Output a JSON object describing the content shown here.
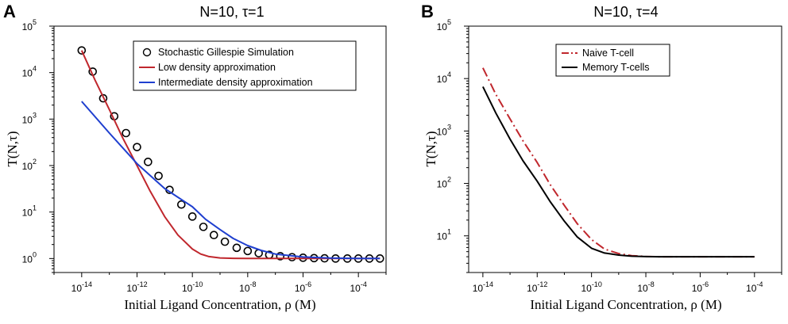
{
  "chart_data": [
    {
      "panel": "A",
      "type": "line",
      "title": "N=10, τ=1",
      "xlabel": "Initial Ligand Concentration, ρ (M)",
      "ylabel": "T(N,τ)",
      "xscale": "log",
      "yscale": "log",
      "xlim": [
        1e-15,
        0.001
      ],
      "ylim": [
        0.5,
        100000
      ],
      "xticks": [
        {
          "value": 1e-14,
          "base": "10",
          "exp": "-14"
        },
        {
          "value": 1e-12,
          "base": "10",
          "exp": "-12"
        },
        {
          "value": 1e-10,
          "base": "10",
          "exp": "-10"
        },
        {
          "value": 1e-08,
          "base": "10",
          "exp": "-8"
        },
        {
          "value": 1e-06,
          "base": "10",
          "exp": "-6"
        },
        {
          "value": 0.0001,
          "base": "10",
          "exp": "-4"
        }
      ],
      "yticks": [
        {
          "value": 1,
          "base": "10",
          "exp": "0"
        },
        {
          "value": 10,
          "base": "10",
          "exp": "1"
        },
        {
          "value": 100,
          "base": "10",
          "exp": "2"
        },
        {
          "value": 1000,
          "base": "10",
          "exp": "3"
        },
        {
          "value": 10000,
          "base": "10",
          "exp": "4"
        },
        {
          "value": 100000,
          "base": "10",
          "exp": "5"
        }
      ],
      "legend_position": "top-right",
      "series": [
        {
          "name": "Stochastic Gillespie Simulation",
          "style": "markers",
          "color": "#000000",
          "x": [
            1e-14,
            2.5e-14,
            6e-14,
            1.5e-13,
            4e-13,
            1e-12,
            2.5e-12,
            6e-12,
            1.5e-11,
            4e-11,
            1e-10,
            2.5e-10,
            6e-10,
            1.5e-09,
            4e-09,
            1e-08,
            2.5e-08,
            6e-08,
            1.5e-07,
            4e-07,
            1e-06,
            2.5e-06,
            6e-06,
            1.5e-05,
            4e-05,
            0.0001,
            0.00025,
            0.0006
          ],
          "y": [
            30000,
            10500,
            2800,
            1150,
            500,
            250,
            120,
            60,
            30,
            14.5,
            8,
            4.8,
            3.2,
            2.3,
            1.7,
            1.45,
            1.3,
            1.2,
            1.12,
            1.07,
            1.04,
            1.02,
            1.01,
            1.0,
            1.0,
            1.0,
            1.0,
            1.0
          ]
        },
        {
          "name": "Low density approximation",
          "style": "line",
          "color": "#c0272d",
          "x": [
            1e-14,
            3e-14,
            1e-13,
            3e-13,
            1e-12,
            3e-12,
            1e-11,
            3e-11,
            1e-10,
            2e-10,
            4e-10,
            1e-09,
            3e-09,
            1e-08,
            1e-07,
            1e-06,
            1e-05,
            0.0001,
            0.0006
          ],
          "y": [
            30000,
            7000,
            1600,
            400,
            100,
            28,
            8,
            3.2,
            1.6,
            1.25,
            1.1,
            1.03,
            1.01,
            1.0,
            1.0,
            1.0,
            1.0,
            1.0,
            1.0
          ]
        },
        {
          "name": "Intermediate density approximation",
          "style": "line",
          "color": "#1f3fcf",
          "x": [
            1e-14,
            1e-13,
            1e-12,
            1e-11,
            1e-10,
            3e-10,
            1e-09,
            3e-09,
            1e-08,
            3e-08,
            1e-07,
            1e-06,
            1e-05,
            0.0001,
            0.0006
          ],
          "y": [
            2400,
            500,
            110,
            32,
            13,
            7,
            4.2,
            2.7,
            1.9,
            1.5,
            1.25,
            1.08,
            1.02,
            1.0,
            1.0
          ]
        }
      ]
    },
    {
      "panel": "B",
      "type": "line",
      "title": "N=10, τ=4",
      "xlabel": "Initial Ligand Concentration, ρ (M)",
      "ylabel": "T(N,τ)",
      "xscale": "log",
      "yscale": "log",
      "xlim": [
        3e-15,
        0.001
      ],
      "ylim": [
        2,
        100000
      ],
      "xticks": [
        {
          "value": 1e-14,
          "base": "10",
          "exp": "-14"
        },
        {
          "value": 1e-12,
          "base": "10",
          "exp": "-12"
        },
        {
          "value": 1e-10,
          "base": "10",
          "exp": "-10"
        },
        {
          "value": 1e-08,
          "base": "10",
          "exp": "-8"
        },
        {
          "value": 1e-06,
          "base": "10",
          "exp": "-6"
        },
        {
          "value": 0.0001,
          "base": "10",
          "exp": "-4"
        }
      ],
      "yticks": [
        {
          "value": 10,
          "base": "10",
          "exp": "1"
        },
        {
          "value": 100,
          "base": "10",
          "exp": "2"
        },
        {
          "value": 1000,
          "base": "10",
          "exp": "3"
        },
        {
          "value": 10000,
          "base": "10",
          "exp": "4"
        },
        {
          "value": 100000,
          "base": "10",
          "exp": "5"
        }
      ],
      "legend_position": "top-center",
      "series": [
        {
          "name": "Naive T-cell",
          "style": "dashdot",
          "color": "#c0272d",
          "x": [
            1e-14,
            3e-14,
            1e-13,
            3e-13,
            1e-12,
            3e-12,
            1e-11,
            3e-11,
            1e-10,
            3e-10,
            1e-09,
            3e-09,
            1e-08,
            3e-08,
            1e-07,
            1e-06,
            1e-05,
            0.0001
          ],
          "y": [
            16000,
            5000,
            1700,
            650,
            250,
            95,
            38,
            17,
            8.5,
            5.6,
            4.6,
            4.2,
            4.05,
            4.0,
            4.0,
            4.0,
            4.0,
            4.0
          ]
        },
        {
          "name": "Memory T-cells",
          "style": "solid",
          "color": "#000000",
          "x": [
            1e-14,
            3e-14,
            1e-13,
            3e-13,
            1e-12,
            3e-12,
            1e-11,
            3e-11,
            1e-10,
            3e-10,
            1e-09,
            3e-09,
            1e-08,
            3e-08,
            1e-07,
            1e-06,
            1e-05,
            0.0001
          ],
          "y": [
            7000,
            2200,
            700,
            270,
            110,
            45,
            19,
            9.5,
            5.8,
            4.7,
            4.3,
            4.1,
            4.02,
            4.0,
            4.0,
            4.0,
            4.0,
            4.0
          ]
        }
      ]
    }
  ]
}
